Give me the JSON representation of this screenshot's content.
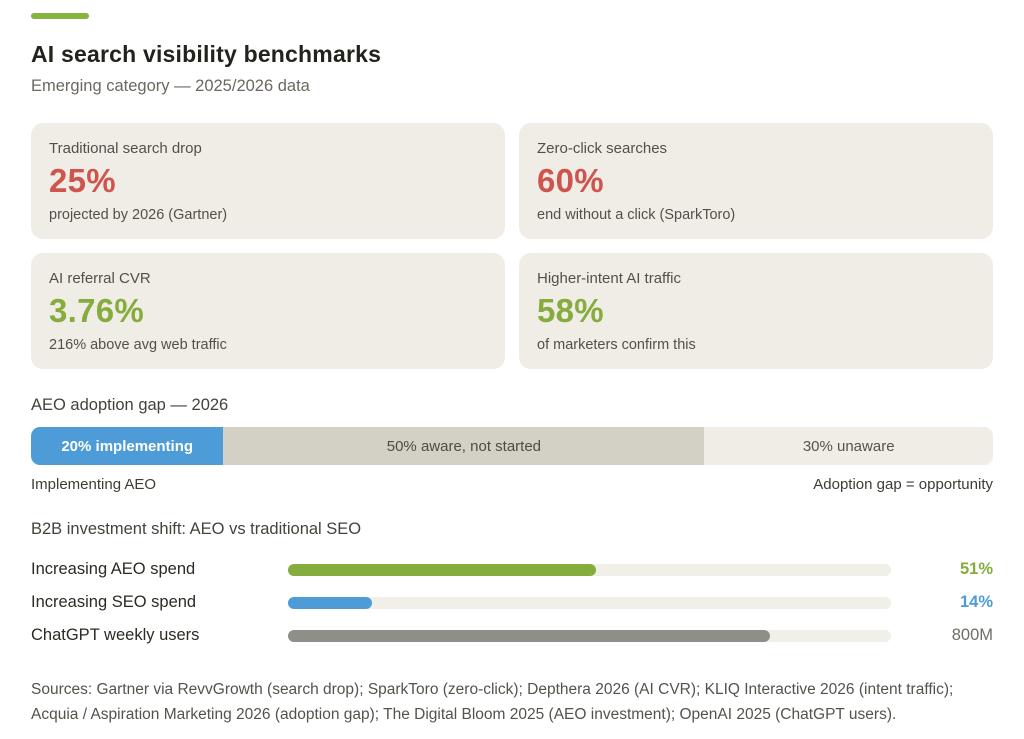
{
  "accent_color": "#85b43f",
  "header": {
    "title": "AI search visibility benchmarks",
    "subtitle": "Emerging category — 2025/2026 data"
  },
  "colors": {
    "red": "#d0544e",
    "green": "#85ac3c",
    "blue": "#4d9cd7",
    "gray_bar": "#8f8f8a",
    "tan_segment": "#d3d0c5",
    "light_segment": "#efede5",
    "card_bg": "#efede6"
  },
  "stat_cards": [
    {
      "label": "Traditional search drop",
      "value": "25%",
      "value_color": "#d0544e",
      "note": "projected by 2026 (Gartner)"
    },
    {
      "label": "Zero-click searches",
      "value": "60%",
      "value_color": "#d0544e",
      "note": "end without a click (SparkToro)"
    },
    {
      "label": "AI referral CVR",
      "value": "3.76%",
      "value_color": "#85ac3c",
      "note": "216% above avg web traffic"
    },
    {
      "label": "Higher-intent AI traffic",
      "value": "58%",
      "value_color": "#85ac3c",
      "note": "of marketers confirm this"
    }
  ],
  "adoption": {
    "heading": "AEO adoption gap — 2026",
    "segments": [
      {
        "label": "20% implementing",
        "percent": 20,
        "color": "#4d9cd7",
        "text_color": "#ffffff"
      },
      {
        "label": "50% aware, not started",
        "percent": 50,
        "color": "#d3d0c5",
        "text_color": "#4e4b44"
      },
      {
        "label": "30% unaware",
        "percent": 30,
        "color": "#efede5",
        "text_color": "#56534c"
      }
    ],
    "left_note": "Implementing AEO",
    "right_note": "Adoption gap = opportunity"
  },
  "investment": {
    "heading": "B2B investment shift: AEO vs traditional SEO",
    "rows": [
      {
        "label": "Increasing AEO spend",
        "value_label": "51%",
        "fill_percent": 51,
        "color": "#85ac3c",
        "value_color": "#85ac3c",
        "value_bold": true
      },
      {
        "label": "Increasing SEO spend",
        "value_label": "14%",
        "fill_percent": 14,
        "color": "#4d9cd7",
        "value_color": "#4d9cd7",
        "value_bold": true
      },
      {
        "label": "ChatGPT weekly users",
        "value_label": "800M",
        "fill_percent": 80,
        "color": "#8f8f8a",
        "value_color": "#6f6d66",
        "value_bold": false
      }
    ]
  },
  "sources": "Sources: Gartner via RevvGrowth (search drop); SparkToro (zero-click); Depthera 2026 (AI CVR); KLIQ Interactive 2026 (intent traffic); Acquia / Aspiration Marketing 2026 (adoption gap); The Digital Bloom 2025 (AEO investment); OpenAI 2025 (ChatGPT users).",
  "chart_data": [
    {
      "type": "bar",
      "subtype": "stacked-horizontal",
      "title": "AEO adoption gap — 2026",
      "categories": [
        "Implementing",
        "Aware, not started",
        "Unaware"
      ],
      "values": [
        20,
        50,
        30
      ],
      "unit": "%",
      "annotations": [
        "Implementing AEO",
        "Adoption gap = opportunity"
      ]
    },
    {
      "type": "bar",
      "subtype": "horizontal",
      "title": "B2B investment shift: AEO vs traditional SEO",
      "categories": [
        "Increasing AEO spend",
        "Increasing SEO spend",
        "ChatGPT weekly users"
      ],
      "series": [
        {
          "name": "displayed value",
          "values": [
            "51%",
            "14%",
            "800M"
          ]
        },
        {
          "name": "bar fill percent of track",
          "values": [
            51,
            14,
            80
          ]
        }
      ],
      "xlim": [
        0,
        100
      ],
      "grid": false,
      "legend": false
    },
    {
      "type": "table",
      "title": "Stat cards",
      "categories": [
        "Traditional search drop",
        "Zero-click searches",
        "AI referral CVR",
        "Higher-intent AI traffic"
      ],
      "values": [
        "25%",
        "60%",
        "3.76%",
        "58%"
      ]
    }
  ]
}
